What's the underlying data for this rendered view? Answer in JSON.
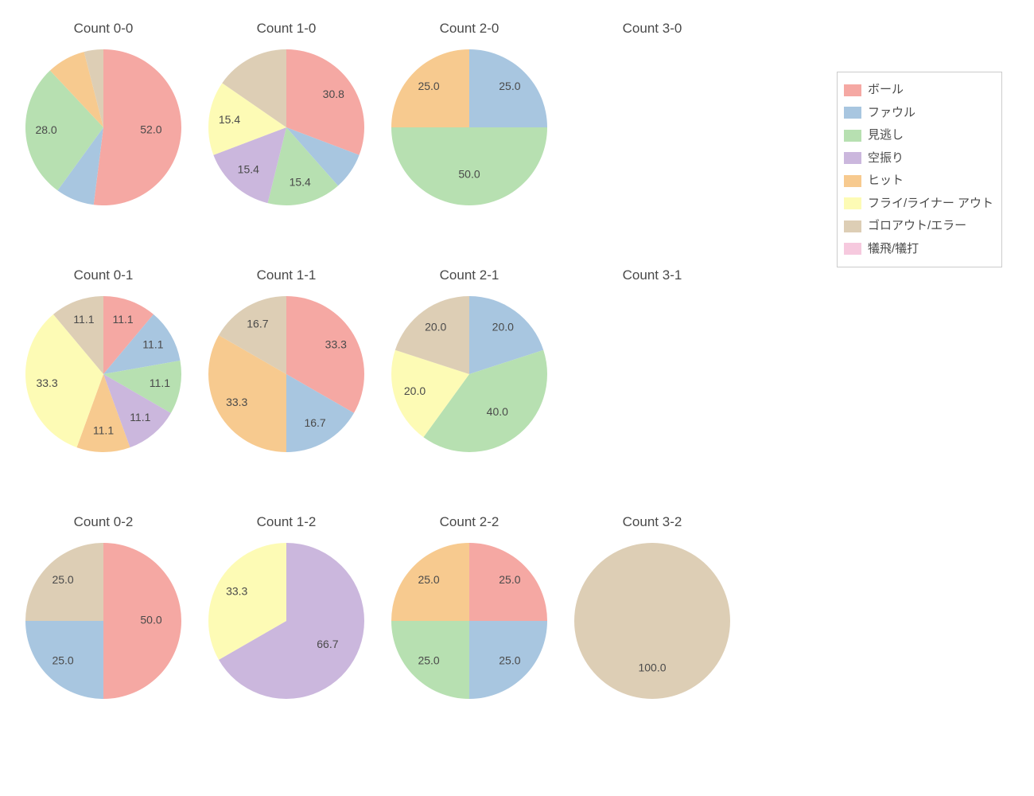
{
  "background_color": "#ffffff",
  "text_color": "#4a4a4a",
  "pie_radius": 98,
  "label_radius_small_slice": 72,
  "label_radius_large_slice": 60,
  "label_fontsize": 14,
  "title_fontsize": 17,
  "legend": {
    "border_color": "#cccccc",
    "items": [
      {
        "key": "ball",
        "label": "ボール",
        "color": "#f5a8a3"
      },
      {
        "key": "foul",
        "label": "ファウル",
        "color": "#a8c6e0"
      },
      {
        "key": "look",
        "label": "見逃し",
        "color": "#b7e0b1"
      },
      {
        "key": "swing",
        "label": "空振り",
        "color": "#cbb7dd"
      },
      {
        "key": "hit",
        "label": "ヒット",
        "color": "#f7ca8f"
      },
      {
        "key": "flyout",
        "label": "フライ/ライナー アウト",
        "color": "#fdfbb5"
      },
      {
        "key": "groundout",
        "label": "ゴロアウト/エラー",
        "color": "#ddceb5"
      },
      {
        "key": "sac",
        "label": "犠飛/犠打",
        "color": "#f6c9de"
      }
    ]
  },
  "grid": {
    "cols": 4,
    "rows": 3
  },
  "small_slice_label_threshold": 1,
  "cells": [
    {
      "title": "Count 0-0",
      "slices": [
        {
          "key": "ball",
          "value": 52.0,
          "label": "52.0"
        },
        {
          "key": "foul",
          "value": 8.0
        },
        {
          "key": "look",
          "value": 28.0,
          "label": "28.0"
        },
        {
          "key": "hit",
          "value": 8.0
        },
        {
          "key": "groundout",
          "value": 4.0
        }
      ]
    },
    {
      "title": "Count 1-0",
      "slices": [
        {
          "key": "ball",
          "value": 30.8,
          "label": "30.8"
        },
        {
          "key": "foul",
          "value": 7.7
        },
        {
          "key": "look",
          "value": 15.4,
          "label": "15.4"
        },
        {
          "key": "swing",
          "value": 15.4,
          "label": "15.4"
        },
        {
          "key": "flyout",
          "value": 15.4,
          "label": "15.4"
        },
        {
          "key": "groundout",
          "value": 15.4
        }
      ]
    },
    {
      "title": "Count 2-0",
      "slices": [
        {
          "key": "foul",
          "value": 25.0,
          "label": "25.0"
        },
        {
          "key": "look",
          "value": 50.0,
          "label": "50.0"
        },
        {
          "key": "hit",
          "value": 25.0,
          "label": "25.0"
        }
      ]
    },
    {
      "title": "Count 3-0",
      "slices": []
    },
    {
      "title": "Count 0-1",
      "slices": [
        {
          "key": "ball",
          "value": 11.1,
          "label": "11.1"
        },
        {
          "key": "foul",
          "value": 11.1,
          "label": "11.1"
        },
        {
          "key": "look",
          "value": 11.1,
          "label": "11.1"
        },
        {
          "key": "swing",
          "value": 11.1,
          "label": "11.1"
        },
        {
          "key": "hit",
          "value": 11.1,
          "label": "11.1"
        },
        {
          "key": "flyout",
          "value": 33.3,
          "label": "33.3"
        },
        {
          "key": "groundout",
          "value": 11.1,
          "label": "11.1"
        }
      ]
    },
    {
      "title": "Count 1-1",
      "slices": [
        {
          "key": "ball",
          "value": 33.3,
          "label": "33.3"
        },
        {
          "key": "foul",
          "value": 16.7,
          "label": "16.7"
        },
        {
          "key": "hit",
          "value": 33.3,
          "label": "33.3"
        },
        {
          "key": "groundout",
          "value": 16.7,
          "label": "16.7"
        }
      ]
    },
    {
      "title": "Count 2-1",
      "slices": [
        {
          "key": "foul",
          "value": 20.0,
          "label": "20.0"
        },
        {
          "key": "look",
          "value": 40.0,
          "label": "40.0"
        },
        {
          "key": "flyout",
          "value": 20.0,
          "label": "20.0"
        },
        {
          "key": "groundout",
          "value": 20.0,
          "label": "20.0"
        }
      ]
    },
    {
      "title": "Count 3-1",
      "slices": []
    },
    {
      "title": "Count 0-2",
      "slices": [
        {
          "key": "ball",
          "value": 50.0,
          "label": "50.0"
        },
        {
          "key": "foul",
          "value": 25.0,
          "label": "25.0"
        },
        {
          "key": "groundout",
          "value": 25.0,
          "label": "25.0"
        }
      ]
    },
    {
      "title": "Count 1-2",
      "slices": [
        {
          "key": "swing",
          "value": 66.7,
          "label": "66.7"
        },
        {
          "key": "flyout",
          "value": 33.3,
          "label": "33.3"
        }
      ]
    },
    {
      "title": "Count 2-2",
      "slices": [
        {
          "key": "ball",
          "value": 25.0,
          "label": "25.0"
        },
        {
          "key": "foul",
          "value": 25.0,
          "label": "25.0"
        },
        {
          "key": "look",
          "value": 25.0,
          "label": "25.0"
        },
        {
          "key": "hit",
          "value": 25.0,
          "label": "25.0"
        }
      ]
    },
    {
      "title": "Count 3-2",
      "slices": [
        {
          "key": "groundout",
          "value": 100.0,
          "label": "100.0"
        }
      ]
    }
  ]
}
